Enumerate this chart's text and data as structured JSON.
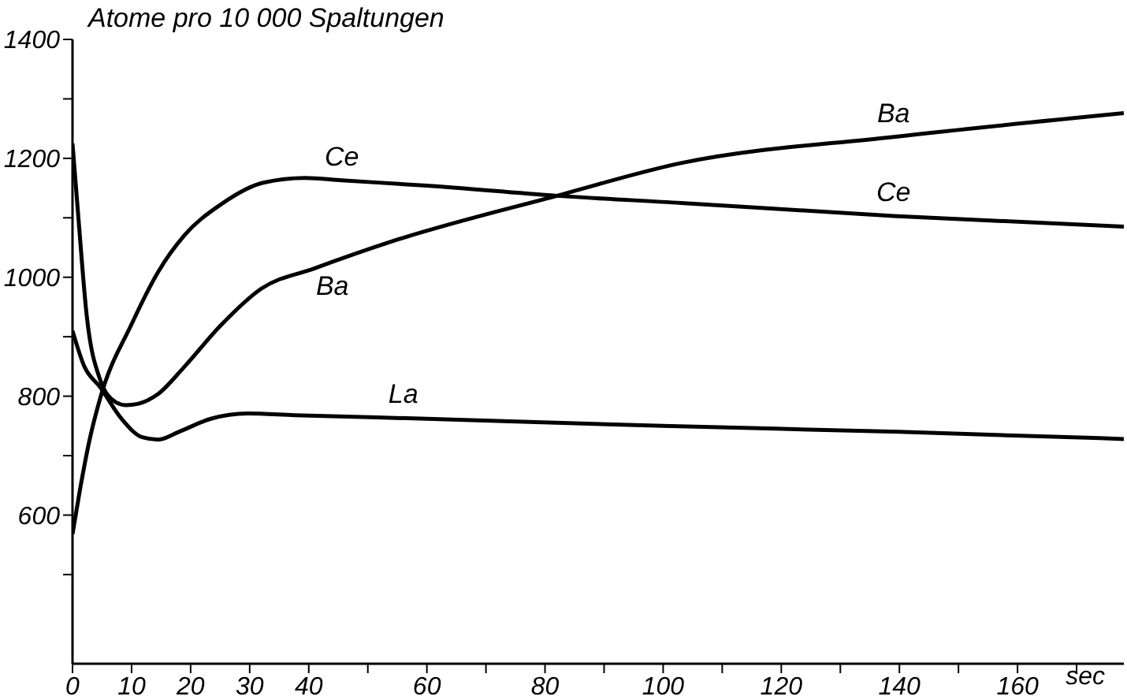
{
  "chart_data": {
    "type": "line",
    "ylabel": "Atome pro 10 000 Spaltungen",
    "xlabel": "sec",
    "xlim": [
      0,
      178
    ],
    "xticks": [
      0,
      10,
      20,
      30,
      40,
      {
        "value": 50,
        "label": null
      },
      60,
      {
        "value": 70,
        "label": null
      },
      80,
      {
        "value": 90,
        "label": null
      },
      100,
      {
        "value": 110,
        "label": null
      },
      120,
      {
        "value": 130,
        "label": null
      },
      140,
      {
        "value": 150,
        "label": null
      },
      160,
      {
        "value": 170,
        "label": null
      }
    ],
    "ylim": [
      350,
      1400
    ],
    "yticks": [
      {
        "value": 500,
        "label": null
      },
      600,
      {
        "value": 700,
        "label": null
      },
      800,
      {
        "value": 900,
        "label": null
      },
      1000,
      {
        "value": 1100,
        "label": null
      },
      1200,
      {
        "value": 1300,
        "label": null
      },
      1400
    ],
    "grid": false,
    "marker": "none",
    "line_style": "solid",
    "series": [
      {
        "color": "#000000",
        "x": [
          0,
          1,
          2.4,
          4.6,
          7.3,
          9,
          11,
          14.4,
          18.9,
          25,
          32,
          41,
          54,
          82,
          103,
          139,
          178
        ],
        "values": [
          1225,
          1100,
          936,
          830,
          790,
          785,
          787,
          803,
          849,
          918,
          981,
          1015,
          1060,
          1137,
          1192,
          1236,
          1276
        ]
      },
      {
        "color": "#000000",
        "x": [
          0,
          1.2,
          2.9,
          4.7,
          10,
          14.5,
          18.9,
          25.2,
          32.3,
          39.4,
          45.6,
          60,
          82,
          103,
          139,
          178
        ],
        "values": [
          568,
          639,
          727,
          797,
          921,
          1009,
          1070,
          1123,
          1159,
          1167,
          1163,
          1154,
          1137,
          1125,
          1103,
          1085
        ]
      },
      {
        "color": "#000000",
        "x": [
          0,
          2,
          4.7,
          8.3,
          11.8,
          14.5,
          18,
          23.4,
          29.6,
          37.6,
          60,
          100,
          140,
          178
        ],
        "values": [
          910,
          850,
          815,
          762,
          731,
          727,
          740,
          762,
          771,
          768,
          762,
          750,
          740,
          728
        ]
      }
    ],
    "annotations": [
      {
        "text": "Ce",
        "x": 45.6,
        "y": 1163
      },
      {
        "text": "Ce",
        "x": 139,
        "y": 1103
      },
      {
        "text": "Ba",
        "x": 44,
        "y": 1025
      },
      {
        "text": "Ba",
        "x": 139,
        "y": 1236
      },
      {
        "text": "La",
        "x": 56,
        "y": 763
      }
    ]
  }
}
